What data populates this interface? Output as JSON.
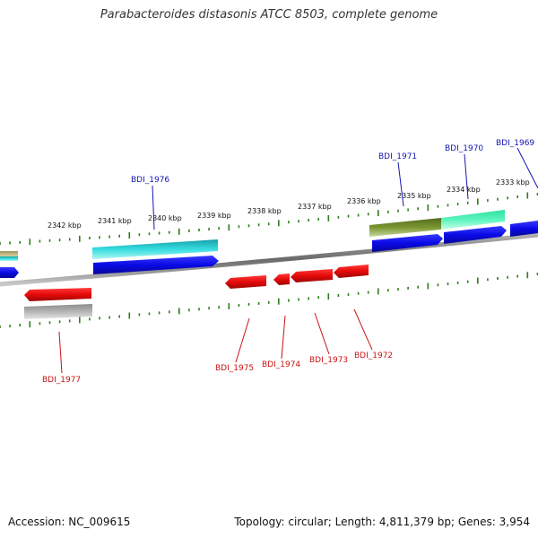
{
  "title": "Parabacteroides distasonis ATCC 8503, complete genome",
  "footer": {
    "accession": "Accession: NC_009615",
    "summary": "Topology: circular; Length: 4,811,379 bp; Genes: 3,954"
  },
  "colors": {
    "forward_label": "#1414b4",
    "reverse_label": "#c81414",
    "tick": "#2e7d1e",
    "backbone": "#8a8a8a"
  },
  "kbp_labels": [
    "2342 kbp",
    "2341 kbp",
    "2340 kbp",
    "2339 kbp",
    "2338 kbp",
    "2337 kbp",
    "2336 kbp",
    "2335 kbp",
    "2334 kbp",
    "2333 kbp"
  ],
  "forward_genes": [
    "BDI_1976",
    "BDI_1971",
    "BDI_1970",
    "BDI_1969"
  ],
  "reverse_genes": [
    "BDI_1975",
    "BDI_1974",
    "BDI_1973",
    "BDI_1972",
    "BDI_1977"
  ]
}
